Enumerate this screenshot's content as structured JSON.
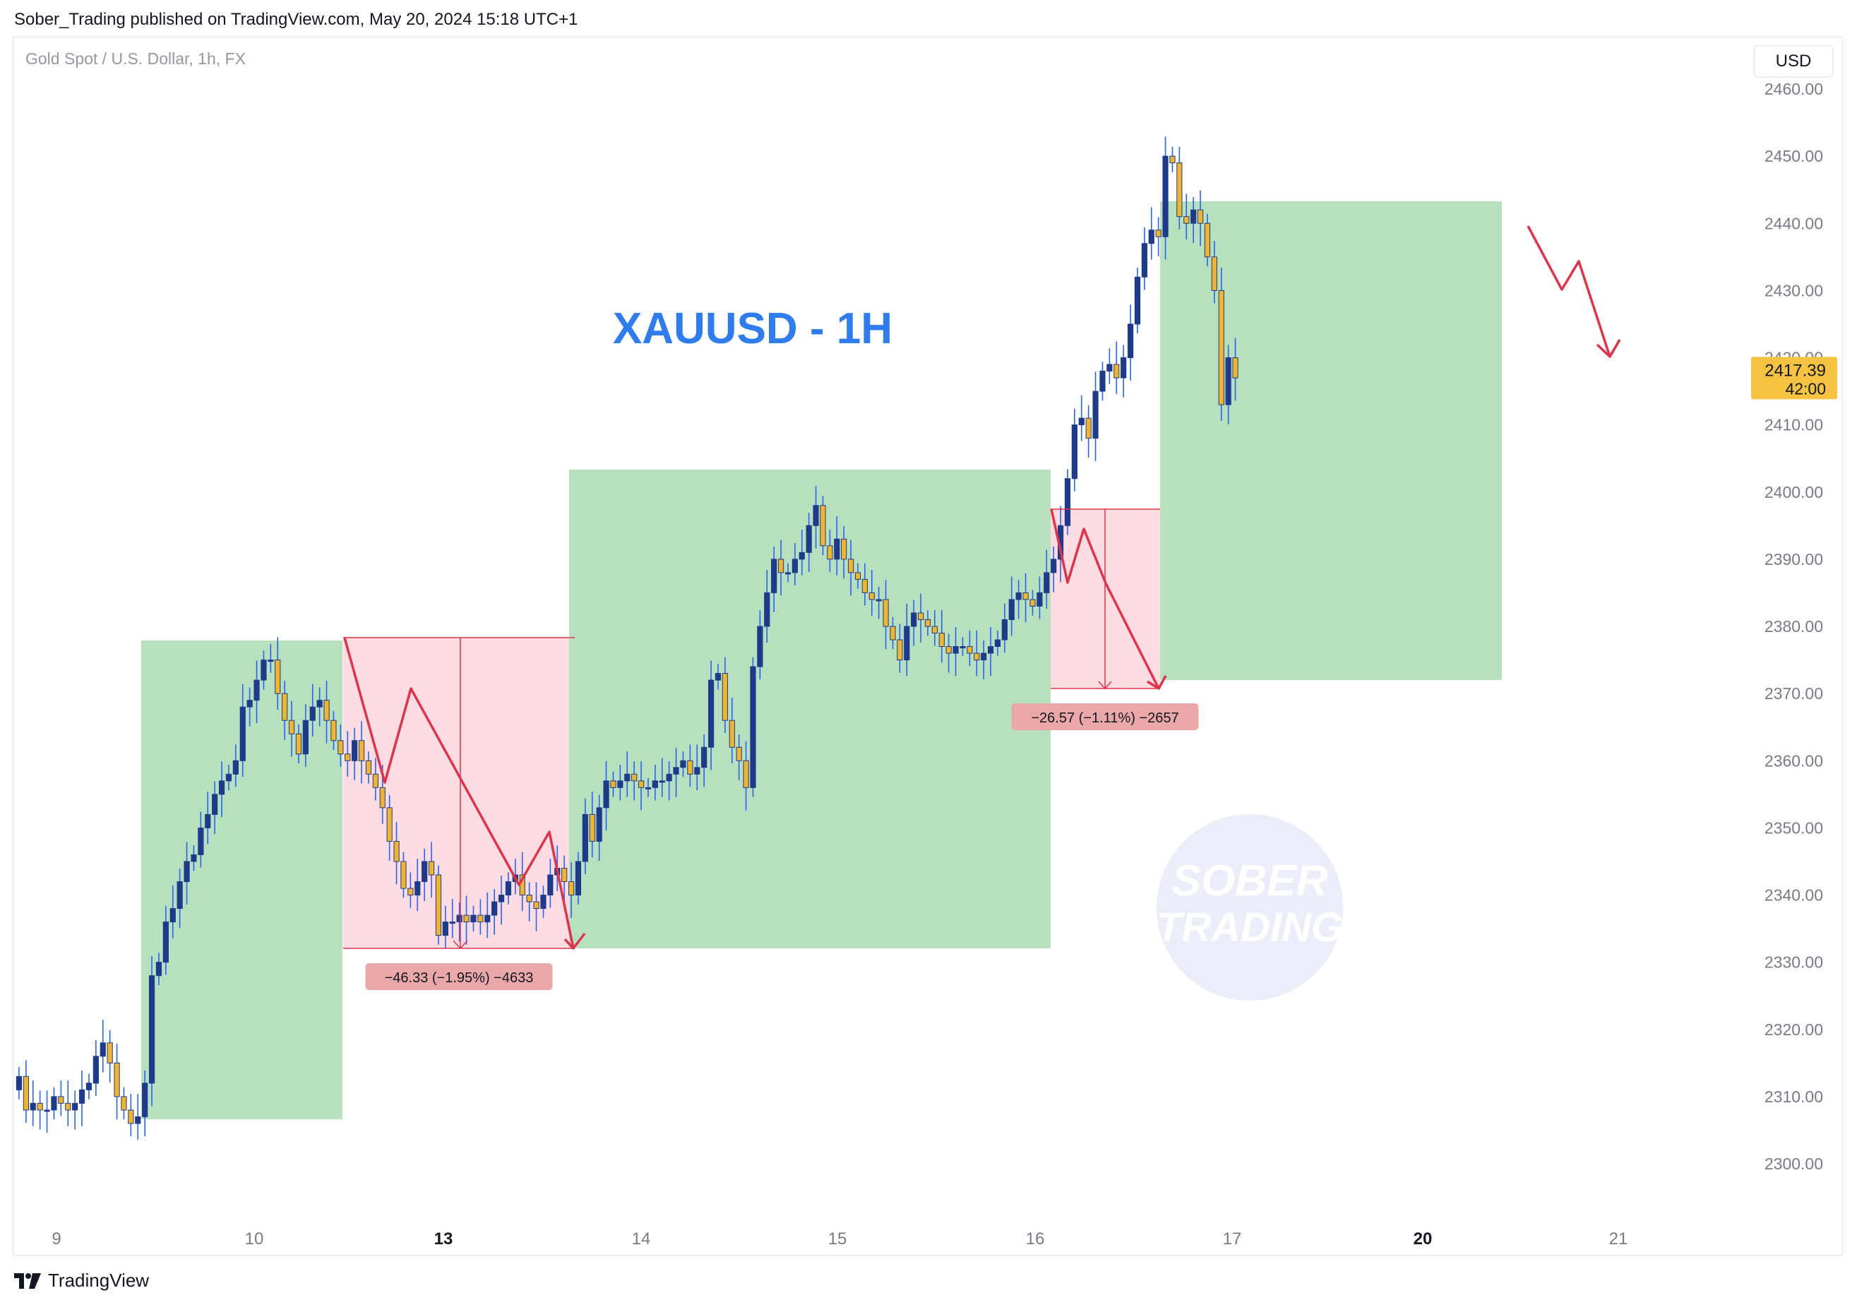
{
  "header": {
    "published_text": "Sober_Trading published on TradingView.com, May 20, 2024 15:18 UTC+1"
  },
  "symbol_line": "Gold Spot / U.S. Dollar, 1h, FX",
  "currency_button": "USD",
  "footer": {
    "brand": "TradingView"
  },
  "watermark": {
    "line1": "SOBER",
    "line2": "TRADING"
  },
  "colors": {
    "bull": "#1e3a8a",
    "bear": "#f0b52c",
    "wick": "#2962ff",
    "green_zone": "#b7e0bd",
    "red_zone": "#fddde2",
    "red_line": "#e0334a",
    "title": "#2f7bf0",
    "price_tag": "#f5c242"
  },
  "chart_data": {
    "type": "candlestick",
    "title": "XAUUSD - 1H",
    "ylim": [
      2295,
      2465
    ],
    "y_ticks": [
      "2300.00",
      "2310.00",
      "2320.00",
      "2330.00",
      "2340.00",
      "2350.00",
      "2360.00",
      "2370.00",
      "2380.00",
      "2390.00",
      "2400.00",
      "2410.00",
      "2420.00",
      "2430.00",
      "2440.00",
      "2450.00",
      "2460.00"
    ],
    "x_ticks": [
      {
        "label": "9",
        "bold": false
      },
      {
        "label": "10",
        "bold": false
      },
      {
        "label": "13",
        "bold": true
      },
      {
        "label": "14",
        "bold": false
      },
      {
        "label": "15",
        "bold": false
      },
      {
        "label": "16",
        "bold": false
      },
      {
        "label": "17",
        "bold": false
      },
      {
        "label": "20",
        "bold": true
      },
      {
        "label": "21",
        "bold": false
      }
    ],
    "last_price": {
      "price": "2417.39",
      "countdown": "42:00",
      "value": 2417.39
    },
    "closes": [
      2313,
      2308,
      2309,
      2308,
      2308,
      2310,
      2309,
      2308,
      2309,
      2311,
      2312,
      2316,
      2318,
      2315,
      2310,
      2308,
      2306,
      2307,
      2312,
      2328,
      2330,
      2336,
      2338,
      2342,
      2345,
      2346,
      2350,
      2352,
      2355,
      2357,
      2358,
      2360,
      2368,
      2369,
      2372,
      2375,
      2375,
      2370,
      2366,
      2364,
      2361,
      2366,
      2368,
      2369,
      2366,
      2363,
      2361,
      2360,
      2363,
      2360,
      2358,
      2356,
      2353,
      2348,
      2345,
      2341,
      2340,
      2342,
      2345,
      2343,
      2334,
      2336,
      2336,
      2337,
      2336,
      2337,
      2336,
      2337,
      2339,
      2340,
      2342,
      2343,
      2340,
      2339,
      2338,
      2340,
      2343,
      2344,
      2342,
      2340,
      2345,
      2352,
      2348,
      2353,
      2357,
      2356,
      2357,
      2358,
      2357,
      2356,
      2356,
      2357,
      2357,
      2358,
      2359,
      2360,
      2358,
      2359,
      2362,
      2372,
      2373,
      2366,
      2362,
      2360,
      2356,
      2374,
      2380,
      2385,
      2390,
      2388,
      2388,
      2390,
      2391,
      2395,
      2398,
      2392,
      2390,
      2393,
      2390,
      2388,
      2387,
      2385,
      2384,
      2384,
      2380,
      2378,
      2375,
      2380,
      2382,
      2381,
      2380,
      2379,
      2377,
      2376,
      2377,
      2377,
      2376,
      2375,
      2376,
      2377,
      2378,
      2381,
      2384,
      2385,
      2384,
      2383,
      2385,
      2388,
      2390,
      2395,
      2402,
      2410,
      2411,
      2408,
      2415,
      2418,
      2419,
      2417,
      2420,
      2425,
      2432,
      2437,
      2439,
      2438,
      2450,
      2449,
      2441,
      2440,
      2442,
      2440,
      2435,
      2430,
      2413,
      2420,
      2417
    ]
  }
}
